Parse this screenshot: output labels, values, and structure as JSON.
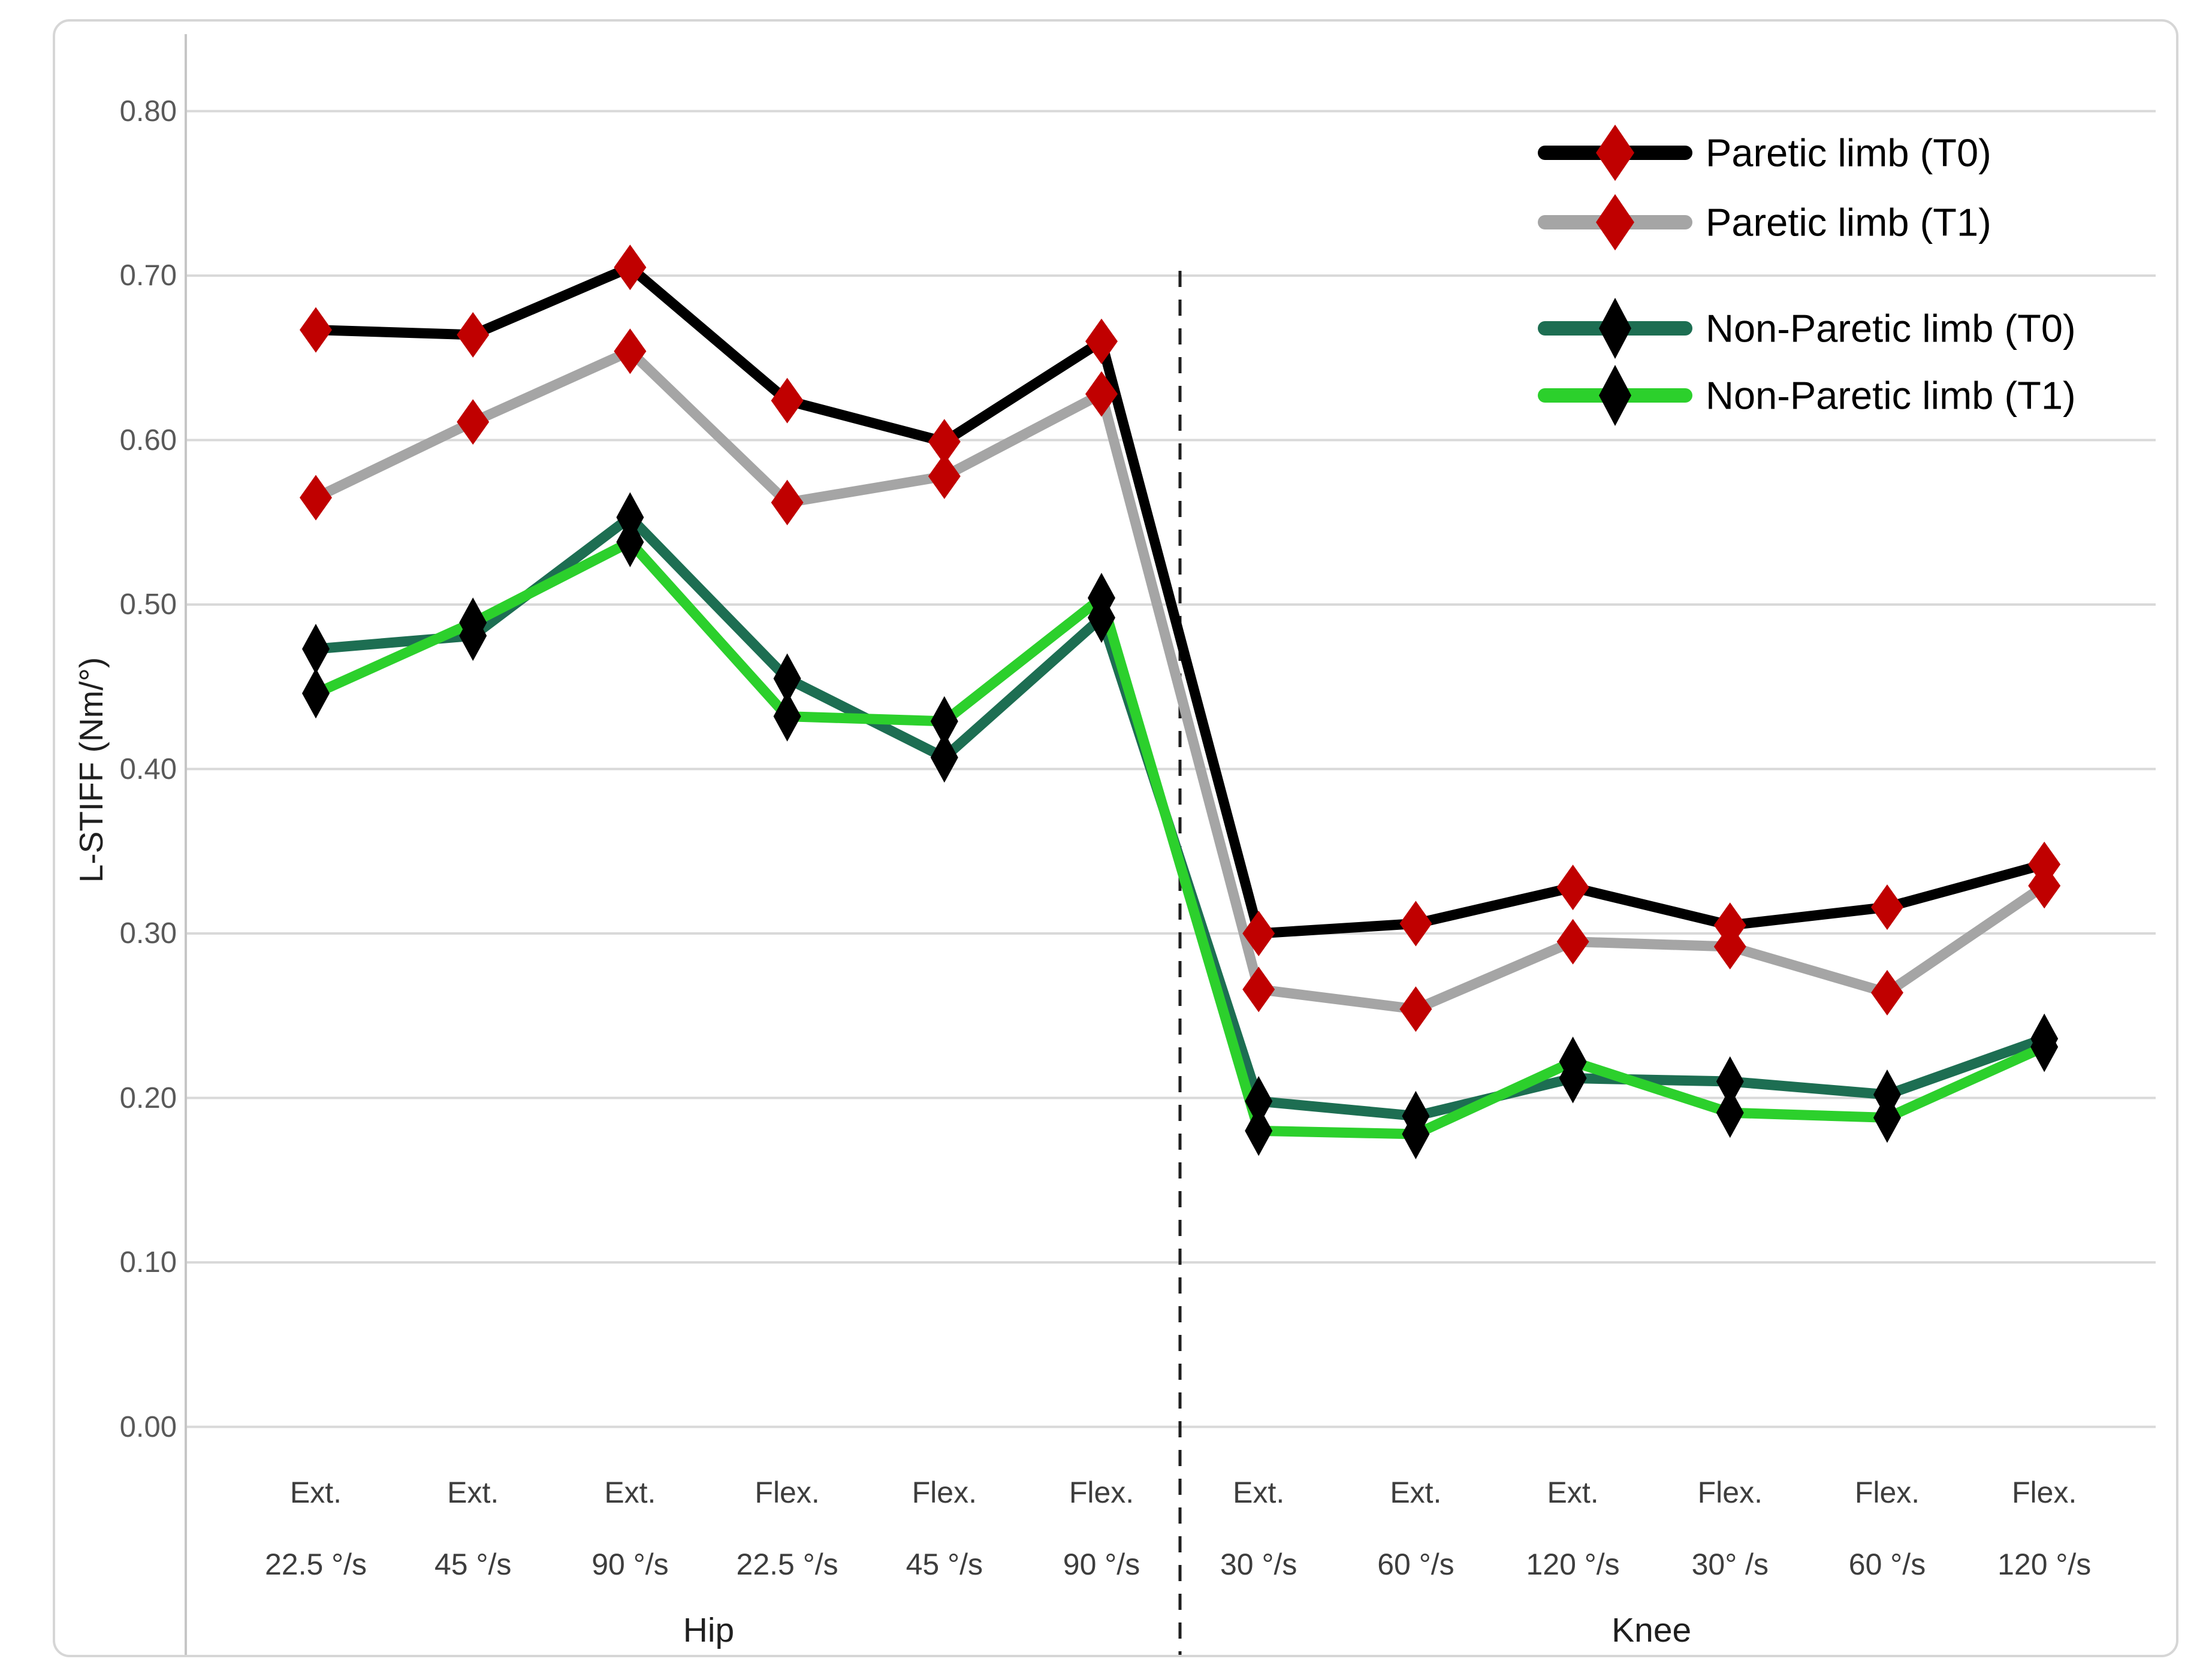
{
  "figure": {
    "background": "#ffffff",
    "border_color": "#d6d6d6",
    "gridline_color": "#d9d9d9",
    "axis_line_color": "#c6c6c6",
    "divider_color": "#1f1f1f",
    "tick_text_color": "#595959"
  },
  "legend": {
    "position": "top-right",
    "items": [
      {
        "label": "Paretic limb (T0)",
        "line_color": "#000000",
        "marker_color": "#c00000"
      },
      {
        "label": "Paretic limb (T1)",
        "line_color": "#a5a5a5",
        "marker_color": "#c00000"
      },
      {
        "label": "Non-Paretic limb (T0)",
        "line_color": "#1d6e52",
        "marker_color": "#000000"
      },
      {
        "label": "Non-Paretic limb (T1)",
        "line_color": "#2cd02c",
        "marker_color": "#000000"
      }
    ]
  },
  "chart_data": {
    "type": "line",
    "title": "",
    "xlabel": "",
    "ylabel": "L-STIFF (Nm/°)",
    "ylim": [
      0.0,
      0.8
    ],
    "ytick_step": 0.1,
    "yticks": [
      "0.00",
      "0.10",
      "0.20",
      "0.30",
      "0.40",
      "0.50",
      "0.60",
      "0.70",
      "0.80"
    ],
    "grid": true,
    "legend_position": "top-right",
    "marker": "diamond",
    "categories": [
      {
        "motion": "Ext.",
        "speed": "22.5 °/s",
        "group": "Hip"
      },
      {
        "motion": "Ext.",
        "speed": "45 °/s",
        "group": "Hip"
      },
      {
        "motion": "Ext.",
        "speed": "90 °/s",
        "group": "Hip"
      },
      {
        "motion": "Flex.",
        "speed": "22.5 °/s",
        "group": "Hip"
      },
      {
        "motion": "Flex.",
        "speed": "45 °/s",
        "group": "Hip"
      },
      {
        "motion": "Flex.",
        "speed": "90 °/s",
        "group": "Hip"
      },
      {
        "motion": "Ext.",
        "speed": "30 °/s",
        "group": "Knee"
      },
      {
        "motion": "Ext.",
        "speed": "60 °/s",
        "group": "Knee"
      },
      {
        "motion": "Ext.",
        "speed": "120 °/s",
        "group": "Knee"
      },
      {
        "motion": "Flex.",
        "speed": "30° /s",
        "group": "Knee"
      },
      {
        "motion": "Flex.",
        "speed": "60 °/s",
        "group": "Knee"
      },
      {
        "motion": "Flex.",
        "speed": "120 °/s",
        "group": "Knee"
      }
    ],
    "groups": [
      {
        "label": "Hip",
        "from": 0,
        "to": 5
      },
      {
        "label": "Knee",
        "from": 6,
        "to": 11
      }
    ],
    "divider_after_category_index": 5,
    "series": [
      {
        "name": "Paretic limb (T0)",
        "line_color": "#000000",
        "marker_color": "#c00000",
        "values": [
          0.667,
          0.664,
          0.705,
          0.624,
          0.599,
          0.66,
          0.3,
          0.306,
          0.328,
          0.305,
          0.316,
          0.342
        ]
      },
      {
        "name": "Paretic limb (T1)",
        "line_color": "#a5a5a5",
        "marker_color": "#c00000",
        "values": [
          0.565,
          0.611,
          0.654,
          0.562,
          0.578,
          0.628,
          0.266,
          0.254,
          0.295,
          0.292,
          0.264,
          0.329
        ]
      },
      {
        "name": "Non-Paretic limb (T0)",
        "line_color": "#1d6e52",
        "marker_color": "#000000",
        "values": [
          0.473,
          0.481,
          0.553,
          0.455,
          0.407,
          0.492,
          0.198,
          0.189,
          0.212,
          0.21,
          0.202,
          0.236
        ]
      },
      {
        "name": "Non-Paretic limb (T1)",
        "line_color": "#2cd02c",
        "marker_color": "#000000",
        "values": [
          0.446,
          0.489,
          0.538,
          0.432,
          0.429,
          0.504,
          0.18,
          0.178,
          0.222,
          0.191,
          0.188,
          0.231
        ]
      }
    ]
  }
}
